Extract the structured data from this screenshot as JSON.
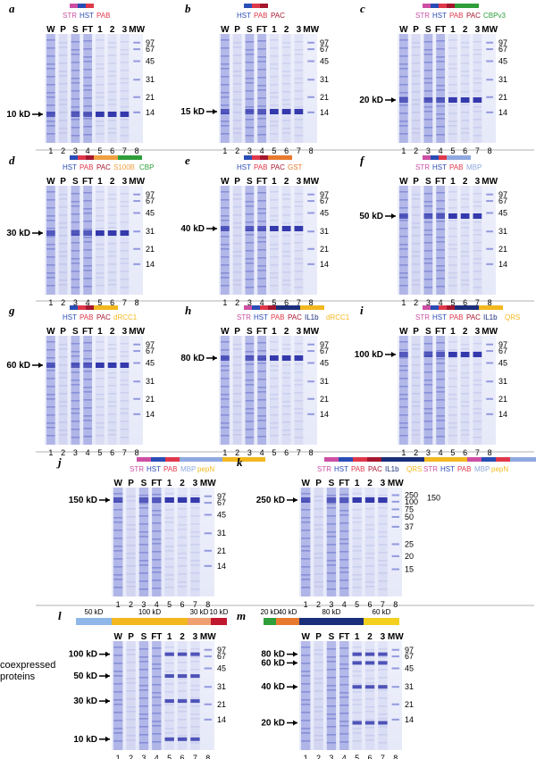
{
  "lanes_header": [
    "W",
    "P",
    "S",
    "FT",
    "1",
    "2",
    "3",
    "MW"
  ],
  "lane_numbers": [
    "1",
    "2",
    "3",
    "4",
    "5",
    "6",
    "7",
    "8"
  ],
  "colors": {
    "STR": "#cc4fa3",
    "HST": "#2a4db5",
    "PAB": "#e0384b",
    "PAC": "#a5162f",
    "CBPv3": "#2e9e3a",
    "S100B": "#f0a040",
    "CBP": "#2e9e3a",
    "GST": "#e87a2f",
    "MBP": "#8fa9e0",
    "dRCC1": "#f3b81f",
    "IL1b": "#1a2e7a",
    "QRS": "#f3b81f",
    "pepN": "#f3b81f"
  },
  "panels": [
    {
      "id": "a",
      "label": "a",
      "tags": [
        {
          "t": "STR",
          "c": "#cc4fa3"
        },
        {
          "t": "HST",
          "c": "#2a4db5"
        },
        {
          "t": "PAB",
          "c": "#e0384b"
        }
      ],
      "kd": "10 kD",
      "mw": [
        "97",
        "67",
        "45",
        "31",
        "21",
        "14"
      ]
    },
    {
      "id": "b",
      "label": "b",
      "tags": [
        {
          "t": "HST",
          "c": "#2a4db5"
        },
        {
          "t": "PAB",
          "c": "#e0384b"
        },
        {
          "t": "PAC",
          "c": "#a5162f"
        }
      ],
      "kd": "15 kD",
      "mw": [
        "97",
        "67",
        "45",
        "31",
        "21",
        "14"
      ]
    },
    {
      "id": "c",
      "label": "c",
      "tags": [
        {
          "t": "STR",
          "c": "#cc4fa3"
        },
        {
          "t": "HST",
          "c": "#2a4db5"
        },
        {
          "t": "PAB",
          "c": "#e0384b"
        },
        {
          "t": "PAC",
          "c": "#a5162f"
        },
        {
          "t": "CBPv3",
          "c": "#2e9e3a"
        }
      ],
      "kd": "20 kD",
      "mw": [
        "97",
        "67",
        "45",
        "31",
        "21",
        "14"
      ]
    },
    {
      "id": "d",
      "label": "d",
      "tags": [
        {
          "t": "HST",
          "c": "#2a4db5"
        },
        {
          "t": "PAB",
          "c": "#e0384b"
        },
        {
          "t": "PAC",
          "c": "#a5162f"
        },
        {
          "t": "S100B",
          "c": "#f0a040"
        },
        {
          "t": "CBP",
          "c": "#2e9e3a"
        }
      ],
      "kd": "30 kD",
      "mw": [
        "97",
        "67",
        "45",
        "31",
        "21",
        "14"
      ]
    },
    {
      "id": "e",
      "label": "e",
      "tags": [
        {
          "t": "HST",
          "c": "#2a4db5"
        },
        {
          "t": "PAB",
          "c": "#e0384b"
        },
        {
          "t": "PAC",
          "c": "#a5162f"
        },
        {
          "t": "GST",
          "c": "#e87a2f"
        }
      ],
      "kd": "40 kD",
      "mw": [
        "97",
        "67",
        "45",
        "31",
        "21",
        "14"
      ]
    },
    {
      "id": "f",
      "label": "f",
      "tags": [
        {
          "t": "STR",
          "c": "#cc4fa3"
        },
        {
          "t": "HST",
          "c": "#2a4db5"
        },
        {
          "t": "PAB",
          "c": "#e0384b"
        },
        {
          "t": "MBP",
          "c": "#8fa9e0"
        }
      ],
      "kd": "50 kD",
      "mw": [
        "97",
        "67",
        "45",
        "31",
        "21",
        "14"
      ]
    },
    {
      "id": "g",
      "label": "g",
      "tags": [
        {
          "t": "HST",
          "c": "#2a4db5"
        },
        {
          "t": "PAB",
          "c": "#e0384b"
        },
        {
          "t": "PAC",
          "c": "#a5162f"
        },
        {
          "t": "dRCC1",
          "c": "#f3b81f"
        }
      ],
      "kd": "60 kD",
      "mw": [
        "97",
        "67",
        "45",
        "31",
        "21",
        "14"
      ]
    },
    {
      "id": "h",
      "label": "h",
      "tags": [
        {
          "t": "STR",
          "c": "#cc4fa3"
        },
        {
          "t": "HST",
          "c": "#2a4db5"
        },
        {
          "t": "PAB",
          "c": "#e0384b"
        },
        {
          "t": "PAC",
          "c": "#a5162f"
        },
        {
          "t": "IL1b",
          "c": "#1a2e7a"
        },
        {
          "t": "dRCC1",
          "c": "#f3b81f"
        }
      ],
      "kd": "80 kD",
      "mw": [
        "97",
        "67",
        "45",
        "31",
        "21",
        "14"
      ]
    },
    {
      "id": "i",
      "label": "i",
      "tags": [
        {
          "t": "STR",
          "c": "#cc4fa3"
        },
        {
          "t": "HST",
          "c": "#2a4db5"
        },
        {
          "t": "PAB",
          "c": "#e0384b"
        },
        {
          "t": "PAC",
          "c": "#a5162f"
        },
        {
          "t": "IL1b",
          "c": "#1a2e7a"
        },
        {
          "t": "QRS",
          "c": "#f3b81f"
        }
      ],
      "kd": "100 kD",
      "mw": [
        "97",
        "67",
        "45",
        "31",
        "21",
        "14"
      ]
    },
    {
      "id": "j",
      "label": "j",
      "tags": [
        {
          "t": "STR",
          "c": "#cc4fa3"
        },
        {
          "t": "HST",
          "c": "#2a4db5"
        },
        {
          "t": "PAB",
          "c": "#e0384b"
        },
        {
          "t": "MBP",
          "c": "#8fa9e0"
        },
        {
          "t": "pepN",
          "c": "#f3b81f"
        }
      ],
      "kd": "150 kD",
      "mw": [
        "97",
        "67",
        "45",
        "31",
        "21",
        "14"
      ]
    },
    {
      "id": "k",
      "label": "k",
      "tags": [
        {
          "t": "STR",
          "c": "#cc4fa3"
        },
        {
          "t": "HST",
          "c": "#2a4db5"
        },
        {
          "t": "PAB",
          "c": "#e0384b"
        },
        {
          "t": "PAC",
          "c": "#a5162f"
        },
        {
          "t": "IL1b",
          "c": "#1a2e7a"
        },
        {
          "t": "QRS",
          "c": "#f3b81f"
        },
        {
          "t": "STR",
          "c": "#cc4fa3"
        },
        {
          "t": "HST",
          "c": "#2a4db5"
        },
        {
          "t": "PAB",
          "c": "#e0384b"
        },
        {
          "t": "MBP",
          "c": "#8fa9e0"
        },
        {
          "t": "pepN",
          "c": "#f3b81f"
        }
      ],
      "kd": "250 kD",
      "mw": [
        "250",
        "100",
        "75",
        "50",
        "37",
        "25",
        "20",
        "15"
      ],
      "mw_extra": "150"
    },
    {
      "id": "l",
      "label": "l",
      "segments": [
        "50 kD",
        "100 kD",
        "30 kD",
        "10 kD"
      ],
      "kds": [
        "100 kD",
        "50 kD",
        "30 kD",
        "10 kD"
      ],
      "mw": [
        "97",
        "67",
        "45",
        "31",
        "21",
        "14"
      ]
    },
    {
      "id": "m",
      "label": "m",
      "segments": [
        "20 kD",
        "40 kD",
        "80 kD",
        "60 kD"
      ],
      "kds": [
        "80 kD",
        "60 kD",
        "40 kD",
        "20 kD"
      ],
      "mw": [
        "97",
        "67",
        "45",
        "31",
        "21",
        "14"
      ]
    }
  ],
  "side_note": "coexpressed\nproteins"
}
